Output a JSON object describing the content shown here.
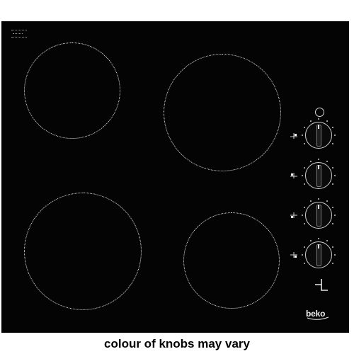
{
  "product": {
    "brand_logo": "beko",
    "surface_color": "#040404",
    "zone_outline_color": "#e9e9e9",
    "cooking_zones": [
      {
        "name": "front-left"
      },
      {
        "name": "back-right"
      },
      {
        "name": "back-left"
      },
      {
        "name": "front-right"
      }
    ],
    "control_knobs": 4,
    "icons": [
      "power-indicator-icon",
      "zone-position-icon",
      "child-lock-icon"
    ]
  },
  "caption": {
    "text": "colour of knobs may vary"
  }
}
